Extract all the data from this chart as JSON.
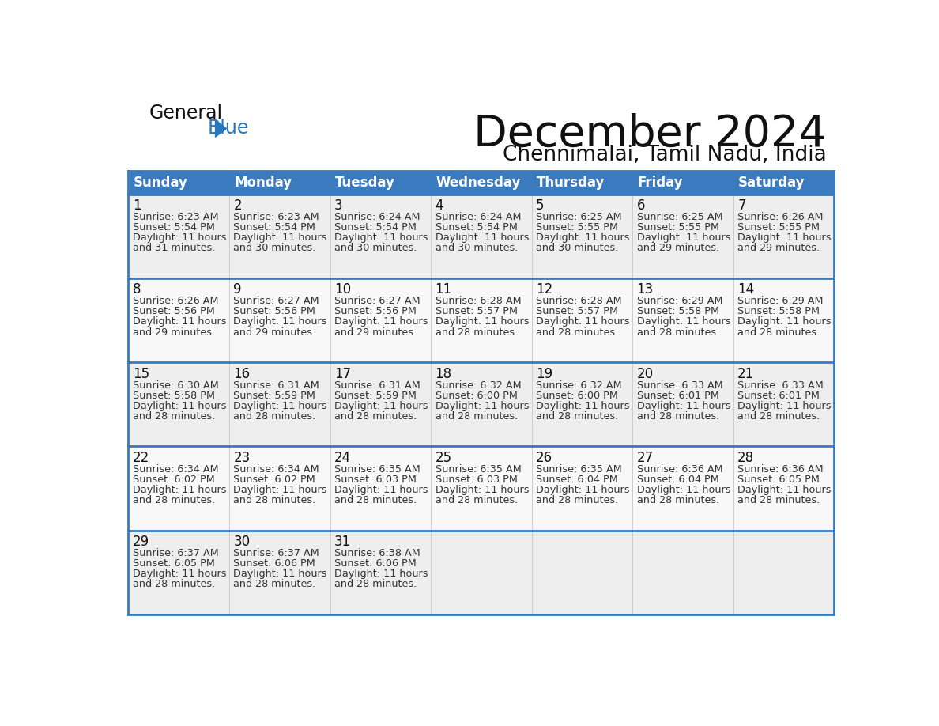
{
  "title": "December 2024",
  "subtitle": "Chennimalai, Tamil Nadu, India",
  "header_color": "#3a7abf",
  "header_text_color": "#ffffff",
  "cell_bg_even": "#eeeeee",
  "cell_bg_odd": "#f8f8f8",
  "cell_bg_last": "#f8f8f8",
  "border_color": "#3a7abf",
  "grid_color": "#cccccc",
  "title_color": "#111111",
  "subtitle_color": "#111111",
  "text_color": "#333333",
  "date_color": "#111111",
  "logo_general_color": "#111111",
  "logo_blue_color": "#2878c0",
  "day_headers": [
    "Sunday",
    "Monday",
    "Tuesday",
    "Wednesday",
    "Thursday",
    "Friday",
    "Saturday"
  ],
  "days": [
    {
      "date": 1,
      "col": 0,
      "row": 0,
      "sunrise": "6:23 AM",
      "sunset": "5:54 PM",
      "daylight_hours": 11,
      "daylight_min": 31
    },
    {
      "date": 2,
      "col": 1,
      "row": 0,
      "sunrise": "6:23 AM",
      "sunset": "5:54 PM",
      "daylight_hours": 11,
      "daylight_min": 30
    },
    {
      "date": 3,
      "col": 2,
      "row": 0,
      "sunrise": "6:24 AM",
      "sunset": "5:54 PM",
      "daylight_hours": 11,
      "daylight_min": 30
    },
    {
      "date": 4,
      "col": 3,
      "row": 0,
      "sunrise": "6:24 AM",
      "sunset": "5:54 PM",
      "daylight_hours": 11,
      "daylight_min": 30
    },
    {
      "date": 5,
      "col": 4,
      "row": 0,
      "sunrise": "6:25 AM",
      "sunset": "5:55 PM",
      "daylight_hours": 11,
      "daylight_min": 30
    },
    {
      "date": 6,
      "col": 5,
      "row": 0,
      "sunrise": "6:25 AM",
      "sunset": "5:55 PM",
      "daylight_hours": 11,
      "daylight_min": 29
    },
    {
      "date": 7,
      "col": 6,
      "row": 0,
      "sunrise": "6:26 AM",
      "sunset": "5:55 PM",
      "daylight_hours": 11,
      "daylight_min": 29
    },
    {
      "date": 8,
      "col": 0,
      "row": 1,
      "sunrise": "6:26 AM",
      "sunset": "5:56 PM",
      "daylight_hours": 11,
      "daylight_min": 29
    },
    {
      "date": 9,
      "col": 1,
      "row": 1,
      "sunrise": "6:27 AM",
      "sunset": "5:56 PM",
      "daylight_hours": 11,
      "daylight_min": 29
    },
    {
      "date": 10,
      "col": 2,
      "row": 1,
      "sunrise": "6:27 AM",
      "sunset": "5:56 PM",
      "daylight_hours": 11,
      "daylight_min": 29
    },
    {
      "date": 11,
      "col": 3,
      "row": 1,
      "sunrise": "6:28 AM",
      "sunset": "5:57 PM",
      "daylight_hours": 11,
      "daylight_min": 28
    },
    {
      "date": 12,
      "col": 4,
      "row": 1,
      "sunrise": "6:28 AM",
      "sunset": "5:57 PM",
      "daylight_hours": 11,
      "daylight_min": 28
    },
    {
      "date": 13,
      "col": 5,
      "row": 1,
      "sunrise": "6:29 AM",
      "sunset": "5:58 PM",
      "daylight_hours": 11,
      "daylight_min": 28
    },
    {
      "date": 14,
      "col": 6,
      "row": 1,
      "sunrise": "6:29 AM",
      "sunset": "5:58 PM",
      "daylight_hours": 11,
      "daylight_min": 28
    },
    {
      "date": 15,
      "col": 0,
      "row": 2,
      "sunrise": "6:30 AM",
      "sunset": "5:58 PM",
      "daylight_hours": 11,
      "daylight_min": 28
    },
    {
      "date": 16,
      "col": 1,
      "row": 2,
      "sunrise": "6:31 AM",
      "sunset": "5:59 PM",
      "daylight_hours": 11,
      "daylight_min": 28
    },
    {
      "date": 17,
      "col": 2,
      "row": 2,
      "sunrise": "6:31 AM",
      "sunset": "5:59 PM",
      "daylight_hours": 11,
      "daylight_min": 28
    },
    {
      "date": 18,
      "col": 3,
      "row": 2,
      "sunrise": "6:32 AM",
      "sunset": "6:00 PM",
      "daylight_hours": 11,
      "daylight_min": 28
    },
    {
      "date": 19,
      "col": 4,
      "row": 2,
      "sunrise": "6:32 AM",
      "sunset": "6:00 PM",
      "daylight_hours": 11,
      "daylight_min": 28
    },
    {
      "date": 20,
      "col": 5,
      "row": 2,
      "sunrise": "6:33 AM",
      "sunset": "6:01 PM",
      "daylight_hours": 11,
      "daylight_min": 28
    },
    {
      "date": 21,
      "col": 6,
      "row": 2,
      "sunrise": "6:33 AM",
      "sunset": "6:01 PM",
      "daylight_hours": 11,
      "daylight_min": 28
    },
    {
      "date": 22,
      "col": 0,
      "row": 3,
      "sunrise": "6:34 AM",
      "sunset": "6:02 PM",
      "daylight_hours": 11,
      "daylight_min": 28
    },
    {
      "date": 23,
      "col": 1,
      "row": 3,
      "sunrise": "6:34 AM",
      "sunset": "6:02 PM",
      "daylight_hours": 11,
      "daylight_min": 28
    },
    {
      "date": 24,
      "col": 2,
      "row": 3,
      "sunrise": "6:35 AM",
      "sunset": "6:03 PM",
      "daylight_hours": 11,
      "daylight_min": 28
    },
    {
      "date": 25,
      "col": 3,
      "row": 3,
      "sunrise": "6:35 AM",
      "sunset": "6:03 PM",
      "daylight_hours": 11,
      "daylight_min": 28
    },
    {
      "date": 26,
      "col": 4,
      "row": 3,
      "sunrise": "6:35 AM",
      "sunset": "6:04 PM",
      "daylight_hours": 11,
      "daylight_min": 28
    },
    {
      "date": 27,
      "col": 5,
      "row": 3,
      "sunrise": "6:36 AM",
      "sunset": "6:04 PM",
      "daylight_hours": 11,
      "daylight_min": 28
    },
    {
      "date": 28,
      "col": 6,
      "row": 3,
      "sunrise": "6:36 AM",
      "sunset": "6:05 PM",
      "daylight_hours": 11,
      "daylight_min": 28
    },
    {
      "date": 29,
      "col": 0,
      "row": 4,
      "sunrise": "6:37 AM",
      "sunset": "6:05 PM",
      "daylight_hours": 11,
      "daylight_min": 28
    },
    {
      "date": 30,
      "col": 1,
      "row": 4,
      "sunrise": "6:37 AM",
      "sunset": "6:06 PM",
      "daylight_hours": 11,
      "daylight_min": 28
    },
    {
      "date": 31,
      "col": 2,
      "row": 4,
      "sunrise": "6:38 AM",
      "sunset": "6:06 PM",
      "daylight_hours": 11,
      "daylight_min": 28
    }
  ]
}
